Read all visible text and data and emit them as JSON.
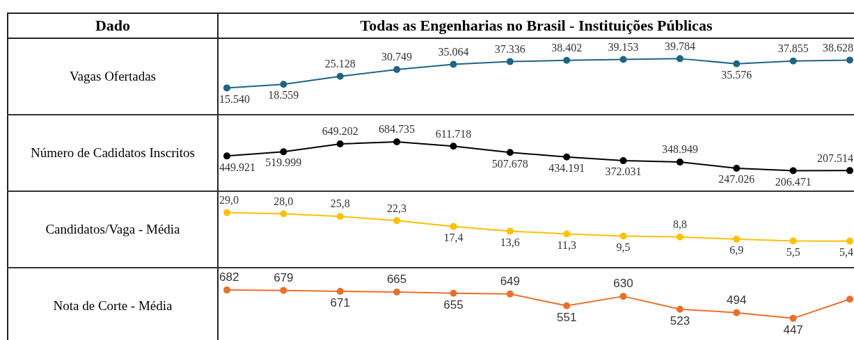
{
  "chart_data": [
    {
      "type": "line",
      "title": "Todas as Engenharias no Brasil - Instituições Públicas",
      "annotations": [
        "Dado"
      ],
      "ylabel": "Vagas Ofertadas",
      "categories": [
        null,
        null,
        null,
        null,
        null,
        null,
        null,
        null,
        null,
        null,
        null,
        null
      ],
      "marker": "circle",
      "tick_labels": false,
      "grid": false,
      "legend": false,
      "series": [
        {
          "color": "#1f6485",
          "values": [
            15540,
            18559,
            25128,
            30749,
            35064,
            37336,
            38402,
            39153,
            39784,
            35576,
            37855,
            38628
          ],
          "value_labels": [
            "15.540",
            "18.559",
            "25.128",
            "30.749",
            "35.064",
            "37.336",
            "38.402",
            "39.153",
            "39.784",
            "35.576",
            "37.855",
            "38.628"
          ]
        }
      ]
    },
    {
      "type": "line",
      "ylabel": "Número de Cadidatos Inscritos",
      "categories": [
        null,
        null,
        null,
        null,
        null,
        null,
        null,
        null,
        null,
        null,
        null,
        null
      ],
      "marker": "circle",
      "tick_labels": false,
      "grid": false,
      "legend": false,
      "series": [
        {
          "color": "#000000",
          "values": [
            449921,
            519999,
            649202,
            684735,
            611718,
            507678,
            434191,
            372031,
            348949,
            247026,
            206471,
            207514
          ],
          "value_labels": [
            "449.921",
            "519.999",
            "649.202",
            "684.735",
            "611.718",
            "507.678",
            "434.191",
            "372.031",
            "348.949",
            "247.026",
            "206.471",
            "207.514"
          ]
        }
      ]
    },
    {
      "type": "line",
      "ylabel": "Candidatos/Vaga - Média",
      "categories": [
        null,
        null,
        null,
        null,
        null,
        null,
        null,
        null,
        null,
        null,
        null,
        null
      ],
      "marker": "circle",
      "tick_labels": false,
      "grid": false,
      "legend": false,
      "series": [
        {
          "color": "#ffc000",
          "values": [
            29.0,
            28.0,
            25.8,
            22.3,
            17.4,
            13.6,
            11.3,
            9.5,
            8.8,
            6.9,
            5.5,
            5.4
          ],
          "value_labels": [
            "29,0",
            "28,0",
            "25,8",
            "22,3",
            "17,4",
            "13,6",
            "11,3",
            "9,5",
            "8,8",
            "6,9",
            "5,5",
            "5,4"
          ]
        }
      ]
    },
    {
      "type": "line",
      "ylabel": "Nota de Corte - Média",
      "categories": [
        null,
        null,
        null,
        null,
        null,
        null,
        null,
        null,
        null,
        null,
        null,
        null
      ],
      "marker": "circle",
      "tick_labels": false,
      "grid": false,
      "legend": false,
      "series": [
        {
          "color": "#e8702a",
          "values": [
            682,
            679,
            671,
            665,
            655,
            649,
            551,
            630,
            523,
            494,
            447,
            606
          ],
          "value_labels": [
            "682",
            "679",
            "671",
            "665",
            "655",
            "649",
            "551",
            "630",
            "523",
            "494",
            "447",
            null
          ]
        }
      ]
    }
  ]
}
